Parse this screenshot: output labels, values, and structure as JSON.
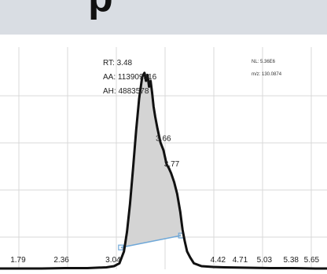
{
  "banner": {
    "fragment": "p"
  },
  "info": {
    "nl": "NL: 5.36E6",
    "mz": "m/z: 130.0874"
  },
  "peak_label": {
    "rt": "RT: 3.48",
    "aa": "AA: 113909316",
    "ah": "AH: 4883578"
  },
  "chart_data": {
    "type": "line",
    "title": "",
    "xlabel": "",
    "ylabel": "",
    "grid": true,
    "xlim": [
      1.55,
      5.85
    ],
    "ylim": [
      0,
      5.6
    ],
    "x": [
      1.55,
      1.8,
      2.1,
      2.4,
      2.7,
      2.95,
      3.05,
      3.12,
      3.18,
      3.22,
      3.26,
      3.3,
      3.34,
      3.38,
      3.42,
      3.45,
      3.47,
      3.49,
      3.51,
      3.53,
      3.55,
      3.57,
      3.59,
      3.62,
      3.66,
      3.7,
      3.74,
      3.77,
      3.8,
      3.84,
      3.88,
      3.92,
      3.95,
      3.98,
      4.01,
      4.05,
      4.1,
      4.2,
      4.35,
      4.5,
      4.8,
      5.1,
      5.4,
      5.7,
      5.85
    ],
    "y": [
      0.02,
      0.02,
      0.02,
      0.03,
      0.03,
      0.05,
      0.08,
      0.15,
      0.45,
      0.95,
      1.65,
      2.55,
      3.5,
      4.3,
      4.85,
      4.95,
      4.75,
      4.9,
      4.6,
      4.75,
      4.45,
      4.1,
      3.85,
      3.55,
      3.2,
      3.0,
      2.65,
      2.55,
      2.42,
      2.2,
      1.9,
      1.45,
      1.0,
      0.7,
      0.45,
      0.3,
      0.15,
      0.08,
      0.06,
      0.05,
      0.04,
      0.03,
      0.03,
      0.02,
      0.02
    ],
    "x_ticks": [
      1.79,
      2.36,
      3.04,
      4.42,
      4.71,
      5.03,
      5.38,
      5.65
    ],
    "peak_labels": [
      {
        "x": 3.66,
        "y": 3.2,
        "label": "3.66"
      },
      {
        "x": 3.77,
        "y": 2.55,
        "label": "3.77"
      }
    ],
    "integration_baseline": {
      "x_start": 3.14,
      "x_end": 3.93,
      "y_start": 0.55,
      "y_end": 0.85
    }
  }
}
